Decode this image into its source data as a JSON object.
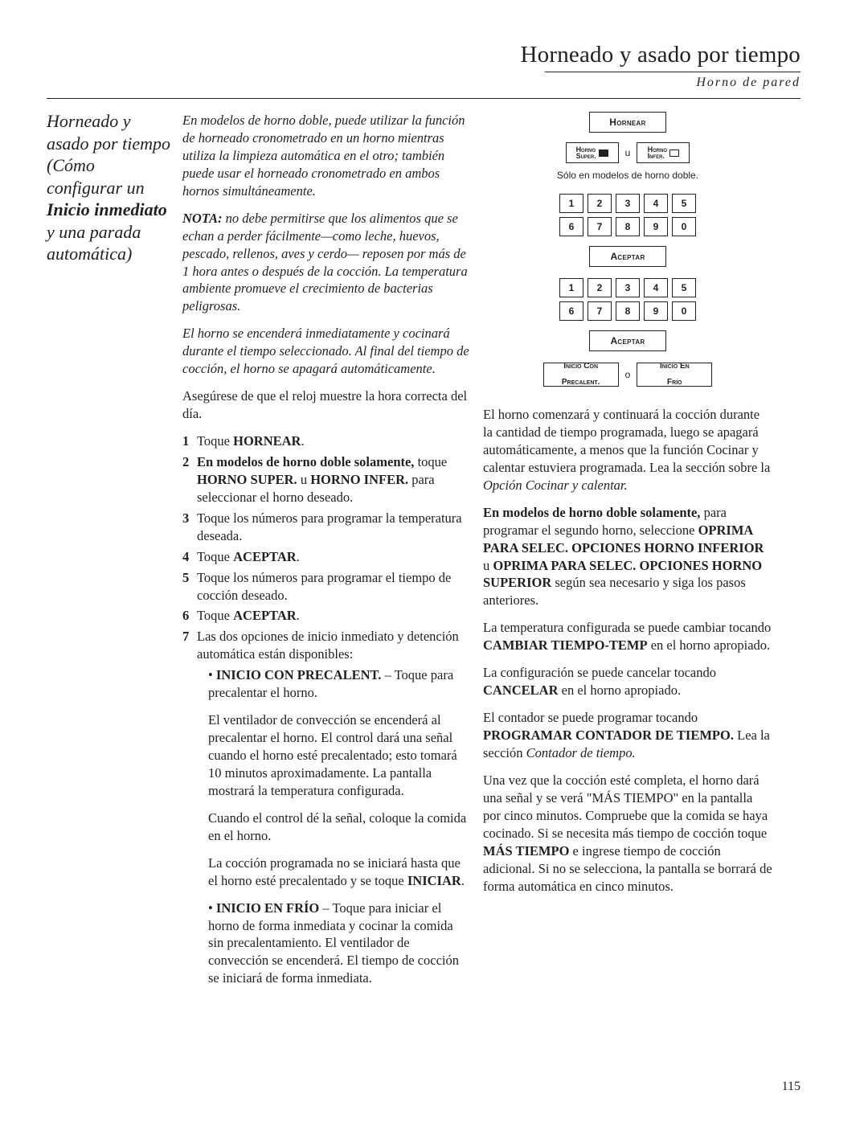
{
  "header": {
    "title": "Horneado y asado por tiempo",
    "subtitle": "Horno de pared",
    "pageNumber": "115"
  },
  "sidebar": {
    "segments": [
      {
        "t": "Horneado y asado por tiempo (Cómo configurar un ",
        "b": false
      },
      {
        "t": "Inicio inmediato",
        "b": true
      },
      {
        "t": " y una parada automática)",
        "b": false
      }
    ]
  },
  "col2": {
    "p1": "En modelos de horno doble, puede utilizar la función de horneado cronometrado en un horno mientras utiliza la limpieza automática en el otro; también puede usar el horneado cronometrado en ambos hornos simultáneamente.",
    "p2_lead": "NOTA:",
    "p2": " no debe permitirse que los alimentos que se echan a perder fácilmente—como leche, huevos, pescado, rellenos, aves y cerdo— reposen por más de 1 hora antes o después de la cocción. La temperatura ambiente promueve el crecimiento de bacterias peligrosas.",
    "p3": "El horno se encenderá inmediatamente y cocinará durante el tiempo seleccionado. Al final del tiempo de cocción, el horno se apagará automáticamente.",
    "p4": "Asegúrese de que el reloj muestre la hora correcta del día.",
    "steps": {
      "s1_a": "Toque ",
      "s1_b": "HORNEAR",
      "s1_c": ".",
      "s2_a": "En modelos de horno doble solamente,",
      "s2_b": " toque ",
      "s2_c": "HORNO SUPER.",
      "s2_d": " u ",
      "s2_e": "HORNO INFER.",
      "s2_f": " para seleccionar el horno deseado.",
      "s3": "Toque los números para programar la temperatura deseada.",
      "s4_a": "Toque ",
      "s4_b": "ACEPTAR",
      "s4_c": ".",
      "s5": "Toque los números para programar el tiempo de cocción deseado.",
      "s6_a": "Toque ",
      "s6_b": "ACEPTAR",
      "s6_c": ".",
      "s7": "Las dos opciones de inicio inmediato y detención automática están disponibles:"
    },
    "bullets": {
      "b1_a": "INICIO CON PRECALENT.",
      "b1_b": " – Toque para precalentar el horno.",
      "b1_p1": "El ventilador de convección se encenderá al precalentar el horno. El control dará una señal cuando el horno esté precalentado; esto tomará 10 minutos aproximadamente. La pantalla mostrará la temperatura configurada.",
      "b1_p2": "Cuando el control dé la señal, coloque la comida en el horno.",
      "b1_p3a": "La cocción programada no se iniciará hasta que el horno esté precalentado y se toque ",
      "b1_p3b": "INICIAR",
      "b1_p3c": ".",
      "b2_a": "INICIO EN FRÍO",
      "b2_b": " – Toque para iniciar el horno de forma inmediata y cocinar la comida sin precalentamiento. El ventilador de convección se encenderá. El tiempo de cocción se iniciará de forma inmediata."
    }
  },
  "col3": {
    "panel": {
      "hornear": "Hornear",
      "super1": "Horno",
      "super2": "Super.",
      "infer1": "Horno",
      "infer2": "Infer.",
      "u": "u",
      "caption": "Sólo en modelos de horno doble.",
      "keys": [
        "1",
        "2",
        "3",
        "4",
        "5",
        "6",
        "7",
        "8",
        "9",
        "0"
      ],
      "accept": "Aceptar",
      "precal1a": "Inicio Con",
      "precal1b": "Precalent.",
      "o": "o",
      "precal2a": "Inicio En",
      "precal2b": "Frío"
    },
    "p1a": "El horno comenzará y continuará la cocción durante la cantidad de tiempo programada, luego se apagará automáticamente, a menos que la función Cocinar y calentar estuviera programada. Lea la sección sobre la ",
    "p1b": "Opción Cocinar y calentar.",
    "p2a": "En modelos de horno doble solamente,",
    "p2b": " para programar el segundo horno, seleccione ",
    "p2c": "OPRIMA PARA SELEC. OPCIONES HORNO INFERIOR",
    "p2d": " u ",
    "p2e": "OPRIMA PARA SELEC. OPCIONES HORNO SUPERIOR",
    "p2f": " según sea necesario y siga los pasos anteriores.",
    "p3a": "La temperatura configurada se puede cambiar tocando ",
    "p3b": "CAMBIAR TIEMPO-TEMP",
    "p3c": " en el horno apropiado.",
    "p4a": "La configuración se puede cancelar tocando ",
    "p4b": "CANCELAR",
    "p4c": " en el horno apropiado.",
    "p5a": "El contador se puede programar tocando ",
    "p5b": "PROGRAMAR CONTADOR DE TIEMPO.",
    "p5c": " Lea la sección ",
    "p5d": "Contador de tiempo.",
    "p6a": "Una vez que la cocción esté completa, el horno dará una señal y se verá \"MÁS TIEMPO\" en la pantalla por cinco minutos. Compruebe que la comida se haya cocinado. Si se necesita más tiempo de cocción toque ",
    "p6b": "MÁS TIEMPO",
    "p6c": " e ingrese tiempo de cocción adicional. Si no se selecciona, la pantalla se borrará de forma automática en cinco minutos."
  }
}
